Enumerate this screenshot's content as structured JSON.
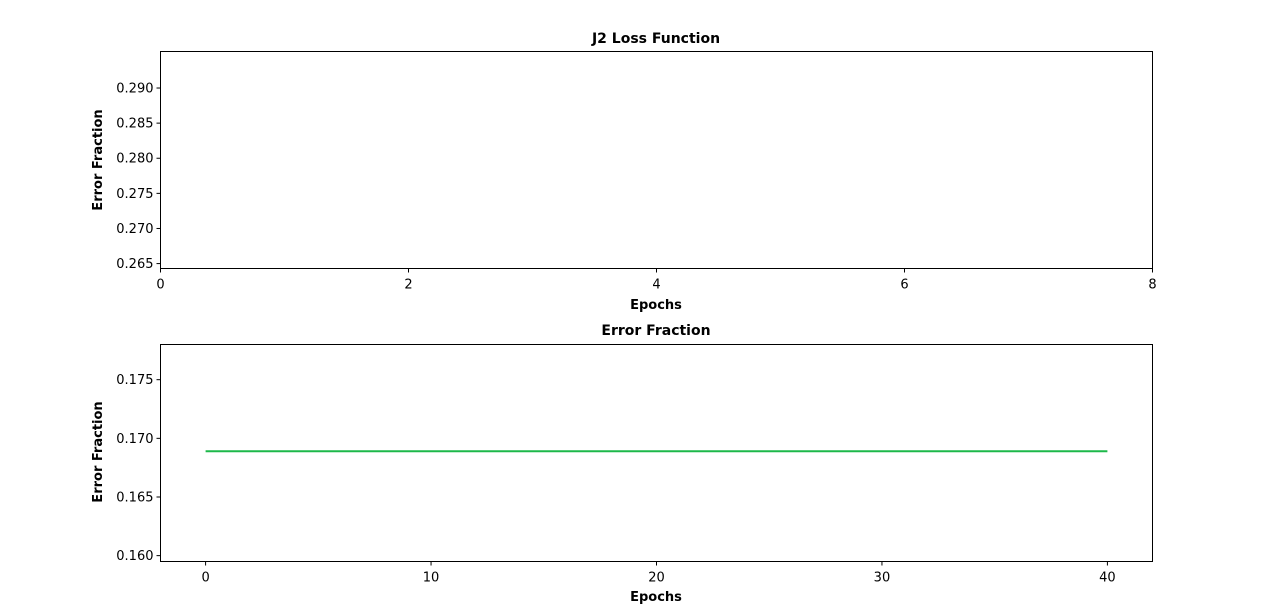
{
  "chart_data": [
    {
      "type": "line",
      "title": "J2 Loss Function",
      "xlabel": "Epochs",
      "ylabel": "Error Fraction",
      "xlim": [
        0,
        8
      ],
      "ylim": [
        0.2643,
        0.2952
      ],
      "xticks": [
        0,
        2,
        4,
        6,
        8
      ],
      "yticks": [
        0.265,
        0.27,
        0.275,
        0.28,
        0.285,
        0.29
      ],
      "ytick_labels": [
        "0.265",
        "0.270",
        "0.275",
        "0.280",
        "0.285",
        "0.290"
      ],
      "series": [],
      "grid": false
    },
    {
      "type": "line",
      "title": "Error Fraction",
      "xlabel": "Epochs",
      "ylabel": "Error Fraction",
      "xlim": [
        -2,
        42
      ],
      "ylim": [
        0.1595,
        0.178
      ],
      "xticks": [
        0,
        10,
        20,
        30,
        40
      ],
      "yticks": [
        0.16,
        0.165,
        0.17,
        0.175
      ],
      "ytick_labels": [
        "0.160",
        "0.165",
        "0.170",
        "0.175"
      ],
      "series": [
        {
          "color": "#1db84a",
          "x": [
            0,
            40
          ],
          "y": [
            0.1689,
            0.1689
          ]
        }
      ],
      "grid": false
    }
  ]
}
